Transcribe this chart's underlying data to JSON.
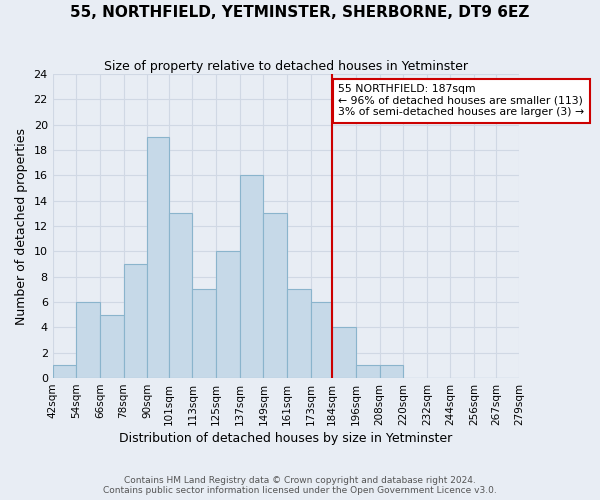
{
  "title": "55, NORTHFIELD, YETMINSTER, SHERBORNE, DT9 6EZ",
  "subtitle": "Size of property relative to detached houses in Yetminster",
  "xlabel": "Distribution of detached houses by size in Yetminster",
  "ylabel": "Number of detached properties",
  "bin_edges": [
    42,
    54,
    66,
    78,
    90,
    101,
    113,
    125,
    137,
    149,
    161,
    173,
    184,
    196,
    208,
    220,
    232,
    244,
    256,
    267,
    279
  ],
  "bar_heights": [
    1,
    6,
    5,
    9,
    19,
    13,
    7,
    10,
    16,
    13,
    7,
    6,
    4,
    1,
    1,
    0,
    0,
    0,
    0,
    0
  ],
  "bar_color": "#c6d9e8",
  "bar_edgecolor": "#8ab4cc",
  "bar_linewidth": 0.8,
  "red_line_x": 184,
  "annotation_title": "55 NORTHFIELD: 187sqm",
  "annotation_line1": "← 96% of detached houses are smaller (113)",
  "annotation_line2": "3% of semi-detached houses are larger (3) →",
  "annotation_box_color": "#ffffff",
  "annotation_box_edgecolor": "#cc0000",
  "red_line_color": "#cc0000",
  "ylim": [
    0,
    24
  ],
  "yticks": [
    0,
    2,
    4,
    6,
    8,
    10,
    12,
    14,
    16,
    18,
    20,
    22,
    24
  ],
  "xlim_left": 42,
  "xlim_right": 279,
  "grid_color": "#d0d8e4",
  "background_color": "#e8edf4",
  "footer1": "Contains HM Land Registry data © Crown copyright and database right 2024.",
  "footer2": "Contains public sector information licensed under the Open Government Licence v3.0.",
  "tick_labels": [
    "42sqm",
    "54sqm",
    "66sqm",
    "78sqm",
    "90sqm",
    "101sqm",
    "113sqm",
    "125sqm",
    "137sqm",
    "149sqm",
    "161sqm",
    "173sqm",
    "184sqm",
    "196sqm",
    "208sqm",
    "220sqm",
    "232sqm",
    "244sqm",
    "256sqm",
    "267sqm",
    "279sqm"
  ]
}
